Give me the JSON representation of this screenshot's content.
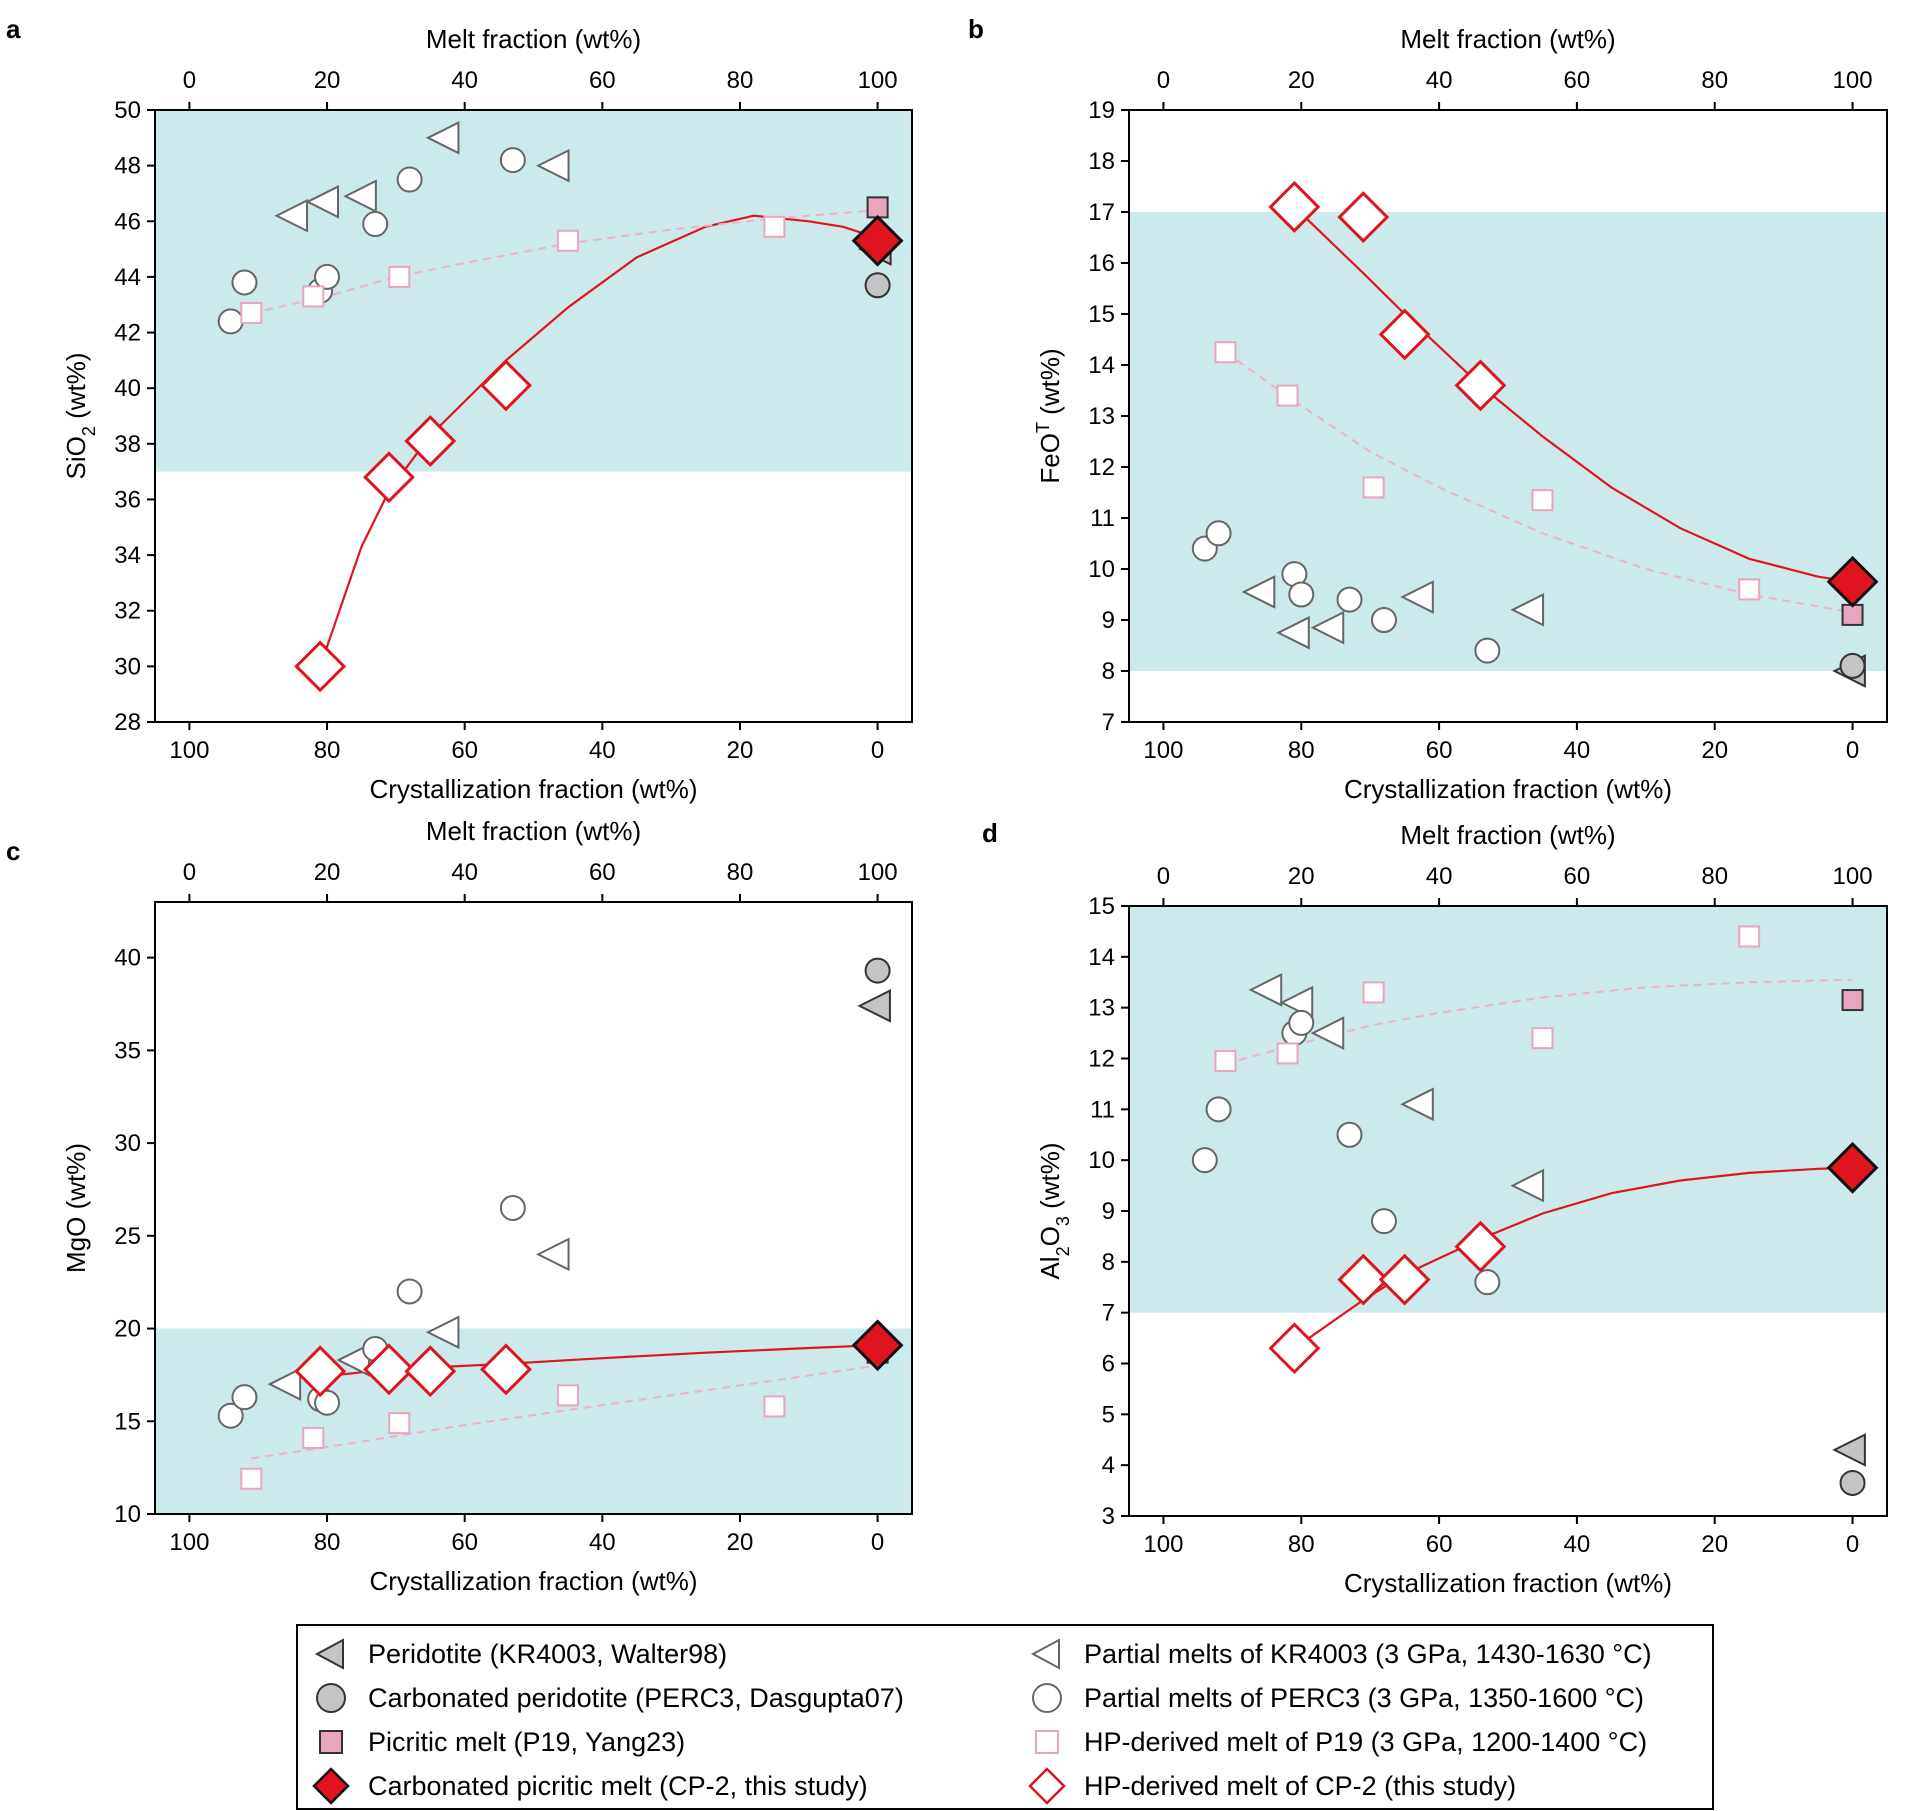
{
  "panels": {
    "a": "a",
    "b": "b",
    "c": "c",
    "d": "d"
  },
  "legend": {
    "items": [
      {
        "label": "Peridotite (KR4003, Walter98)",
        "marker": "triangle-left-filled"
      },
      {
        "label": "Carbonated peridotite (PERC3, Dasgupta07)",
        "marker": "circle-filled"
      },
      {
        "label": "Picritic melt (P19, Yang23)",
        "marker": "square-filled"
      },
      {
        "label": "Carbonated picritic melt (CP-2, this study)",
        "marker": "diamond-filled"
      },
      {
        "label": "Partial melts of KR4003 (3 GPa, 1430-1630 °C)",
        "marker": "triangle-left-open"
      },
      {
        "label": "Partial melts of PERC3 (3 GPa, 1350-1600 °C)",
        "marker": "circle-open"
      },
      {
        "label": "HP-derived melt of P19 (3 GPa, 1200-1400 °C)",
        "marker": "square-open"
      },
      {
        "label": "HP-derived melt of CP-2 (this study)",
        "marker": "diamond-open"
      }
    ]
  },
  "colors": {
    "band": "#cce9ec",
    "gray_fill": "#c4c4c4",
    "pink_fill": "#e8a5bd",
    "red": "#e0141e",
    "pink_line": "#eeb0c7",
    "pink_open": "#e8a5bd"
  },
  "chart_data": [
    {
      "id": "a",
      "type": "scatter",
      "top_xlabel": "Melt fraction (wt%)",
      "xlabel": "Crystallization fraction (wt%)",
      "ylabel": "SiO2 (wt%)",
      "ylabel_main": "SiO",
      "ylabel_sub": "2",
      "ylabel_sup": "",
      "ylabel_tail": " (wt%)",
      "xlim_crystallization": [
        105,
        -5
      ],
      "top_xlim_melt": [
        -5,
        105
      ],
      "ylim": [
        28,
        50
      ],
      "xticks": [
        100,
        80,
        60,
        40,
        20,
        0
      ],
      "top_xticks": [
        0,
        20,
        40,
        60,
        80,
        100
      ],
      "yticks": [
        28,
        30,
        32,
        34,
        36,
        38,
        40,
        42,
        44,
        46,
        48,
        50
      ],
      "band": [
        37,
        50
      ],
      "series": [
        {
          "name": "Peridotite (KR4003, Walter98)",
          "marker": "triangle-left-filled",
          "x": [
            0.2
          ],
          "y": [
            45
          ]
        },
        {
          "name": "Carbonated peridotite (PERC3, Dasgupta07)",
          "marker": "circle-filled",
          "x": [
            0
          ],
          "y": [
            43.7
          ]
        },
        {
          "name": "Picritic melt (P19, Yang23)",
          "marker": "square-filled",
          "x": [
            0
          ],
          "y": [
            46.5
          ]
        },
        {
          "name": "Carbonated picritic melt (CP-2, this study)",
          "marker": "diamond-filled",
          "x": [
            0
          ],
          "y": [
            45.3
          ]
        },
        {
          "name": "Partial melts of KR4003 (3 GPa, 1430-1630 °C)",
          "marker": "triangle-left-open",
          "x": [
            85,
            80.5,
            75,
            63,
            47
          ],
          "y": [
            46.2,
            46.7,
            46.9,
            49,
            48
          ]
        },
        {
          "name": "Partial melts of PERC3 (3 GPa, 1350-1600 °C)",
          "marker": "circle-open",
          "x": [
            94,
            92,
            81,
            80,
            73,
            68,
            53
          ],
          "y": [
            42.4,
            43.8,
            43.5,
            44,
            45.9,
            47.5,
            48.2
          ]
        },
        {
          "name": "HP-derived melt of P19 (3 GPa, 1200-1400 °C)",
          "marker": "square-open",
          "x": [
            91,
            82,
            69.5,
            45,
            15
          ],
          "y": [
            42.7,
            43.3,
            44,
            45.3,
            45.8
          ]
        },
        {
          "name": "HP-derived melt of CP-2 (this study)",
          "marker": "diamond-open",
          "x": [
            81,
            71,
            65,
            54
          ],
          "y": [
            30,
            36.8,
            38.1,
            40.1
          ]
        }
      ],
      "fits": [
        {
          "style": "solid-red",
          "x": [
            81,
            75,
            71,
            65,
            54,
            45,
            35,
            25,
            18,
            10,
            5,
            0
          ],
          "y": [
            30,
            34.3,
            36.3,
            38.3,
            41.0,
            42.9,
            44.7,
            45.8,
            46.2,
            46.0,
            45.8,
            45.4
          ]
        },
        {
          "style": "dashed-pink",
          "x": [
            91,
            80,
            70,
            60,
            45,
            30,
            15,
            0
          ],
          "y": [
            42.7,
            43.3,
            44.0,
            44.5,
            45.2,
            45.7,
            46.1,
            46.4
          ]
        }
      ]
    },
    {
      "id": "b",
      "type": "scatter",
      "top_xlabel": "Melt fraction (wt%)",
      "xlabel": "Crystallization fraction (wt%)",
      "ylabel": "FeOT (wt%)",
      "ylabel_main": "FeO",
      "ylabel_sub": "",
      "ylabel_sup": "T",
      "ylabel_tail": " (wt%)",
      "xlim_crystallization": [
        105,
        -5
      ],
      "top_xlim_melt": [
        -5,
        105
      ],
      "ylim": [
        7,
        19
      ],
      "xticks": [
        100,
        80,
        60,
        40,
        20,
        0
      ],
      "top_xticks": [
        0,
        20,
        40,
        60,
        80,
        100
      ],
      "yticks": [
        7,
        8,
        9,
        10,
        11,
        12,
        13,
        14,
        15,
        16,
        17,
        18,
        19
      ],
      "band": [
        8,
        17
      ],
      "series": [
        {
          "name": "Peridotite (KR4003, Walter98)",
          "marker": "triangle-left-filled",
          "x": [
            0.3
          ],
          "y": [
            8.0
          ]
        },
        {
          "name": "Carbonated peridotite (PERC3, Dasgupta07)",
          "marker": "circle-filled",
          "x": [
            0
          ],
          "y": [
            8.1
          ]
        },
        {
          "name": "Picritic melt (P19, Yang23)",
          "marker": "square-filled",
          "x": [
            0
          ],
          "y": [
            9.1
          ]
        },
        {
          "name": "Carbonated picritic melt (CP-2, this study)",
          "marker": "diamond-filled",
          "x": [
            0
          ],
          "y": [
            9.75
          ]
        },
        {
          "name": "Partial melts of KR4003 (3 GPa, 1430-1630 °C)",
          "marker": "triangle-left-open",
          "x": [
            86,
            81,
            76,
            63,
            47
          ],
          "y": [
            9.55,
            8.75,
            8.85,
            9.45,
            9.2
          ]
        },
        {
          "name": "Partial melts of PERC3 (3 GPa, 1350-1600 °C)",
          "marker": "circle-open",
          "x": [
            94,
            92,
            81,
            80,
            73,
            68,
            53
          ],
          "y": [
            10.4,
            10.7,
            9.9,
            9.5,
            9.4,
            9.0,
            8.4
          ]
        },
        {
          "name": "HP-derived melt of P19 (3 GPa, 1200-1400 °C)",
          "marker": "square-open",
          "x": [
            91,
            82,
            69.5,
            45,
            15
          ],
          "y": [
            14.25,
            13.4,
            11.6,
            11.35,
            9.6
          ]
        },
        {
          "name": "HP-derived melt of CP-2 (this study)",
          "marker": "diamond-open",
          "x": [
            81,
            71,
            65,
            54
          ],
          "y": [
            17.1,
            16.9,
            14.6,
            13.6
          ]
        }
      ],
      "fits": [
        {
          "style": "solid-red",
          "x": [
            81,
            71,
            65,
            54,
            45,
            35,
            25,
            15,
            5,
            0
          ],
          "y": [
            17.1,
            15.8,
            15.0,
            13.6,
            12.6,
            11.6,
            10.8,
            10.2,
            9.85,
            9.75
          ]
        },
        {
          "style": "dashed-pink",
          "x": [
            91,
            80,
            70,
            60,
            45,
            30,
            15,
            0
          ],
          "y": [
            14.25,
            13.2,
            12.3,
            11.6,
            10.7,
            10.0,
            9.5,
            9.15
          ]
        }
      ]
    },
    {
      "id": "c",
      "type": "scatter",
      "top_xlabel": "Melt fraction (wt%)",
      "xlabel": "Crystallization fraction (wt%)",
      "ylabel": "MgO (wt%)",
      "ylabel_main": "MgO",
      "ylabel_sub": "",
      "ylabel_sup": "",
      "ylabel_tail": " (wt%)",
      "xlim_crystallization": [
        105,
        -5
      ],
      "top_xlim_melt": [
        -5,
        105
      ],
      "ylim": [
        10,
        43
      ],
      "xticks": [
        100,
        80,
        60,
        40,
        20,
        0
      ],
      "top_xticks": [
        0,
        20,
        40,
        60,
        80,
        100
      ],
      "yticks": [
        10,
        15,
        20,
        25,
        30,
        35,
        40
      ],
      "band": [
        10,
        20
      ],
      "series": [
        {
          "name": "Peridotite (KR4003, Walter98)",
          "marker": "triangle-left-filled",
          "x": [
            0.3
          ],
          "y": [
            37.4
          ]
        },
        {
          "name": "Carbonated peridotite (PERC3, Dasgupta07)",
          "marker": "circle-filled",
          "x": [
            0
          ],
          "y": [
            39.3
          ]
        },
        {
          "name": "Picritic melt (P19, Yang23)",
          "marker": "square-filled",
          "x": [
            0
          ],
          "y": [
            18.7
          ]
        },
        {
          "name": "Carbonated picritic melt (CP-2, this study)",
          "marker": "diamond-filled",
          "x": [
            0
          ],
          "y": [
            19.1
          ]
        },
        {
          "name": "Partial melts of KR4003 (3 GPa, 1430-1630 °C)",
          "marker": "triangle-left-open",
          "x": [
            86,
            76,
            63,
            47
          ],
          "y": [
            17.0,
            18.3,
            19.8,
            24.0
          ]
        },
        {
          "name": "Partial melts of PERC3 (3 GPa, 1350-1600 °C)",
          "marker": "circle-open",
          "x": [
            94,
            92,
            81,
            80,
            73,
            68,
            53
          ],
          "y": [
            15.3,
            16.3,
            16.2,
            16.0,
            18.9,
            22.0,
            26.5
          ]
        },
        {
          "name": "HP-derived melt of P19 (3 GPa, 1200-1400 °C)",
          "marker": "square-open",
          "x": [
            91,
            82,
            69.5,
            45,
            15
          ],
          "y": [
            11.9,
            14.1,
            14.9,
            16.4,
            15.8
          ]
        },
        {
          "name": "HP-derived melt of CP-2 (this study)",
          "marker": "diamond-open",
          "x": [
            81,
            71,
            65,
            54
          ],
          "y": [
            17.7,
            17.8,
            17.7,
            17.8
          ]
        }
      ],
      "fits": [
        {
          "style": "solid-red",
          "x": [
            81,
            71,
            65,
            54,
            40,
            25,
            10,
            0
          ],
          "y": [
            17.4,
            17.8,
            17.9,
            18.1,
            18.4,
            18.7,
            18.95,
            19.1
          ]
        },
        {
          "style": "dashed-pink",
          "x": [
            91,
            75,
            60,
            45,
            30,
            15,
            0
          ],
          "y": [
            13.0,
            13.9,
            14.8,
            15.6,
            16.4,
            17.2,
            18.0
          ]
        }
      ]
    },
    {
      "id": "d",
      "type": "scatter",
      "top_xlabel": "Melt fraction (wt%)",
      "xlabel": "Crystallization fraction (wt%)",
      "ylabel": "Al2O3 (wt%)",
      "ylabel_main": "Al",
      "ylabel_sub": "2",
      "ylabel_sup": "",
      "ylabel_tail": "O",
      "ylabel_sub2": "3",
      "ylabel_tail2": " (wt%)",
      "xlim_crystallization": [
        105,
        -5
      ],
      "top_xlim_melt": [
        -5,
        105
      ],
      "ylim": [
        3,
        15
      ],
      "xticks": [
        100,
        80,
        60,
        40,
        20,
        0
      ],
      "top_xticks": [
        0,
        20,
        40,
        60,
        80,
        100
      ],
      "yticks": [
        3,
        4,
        5,
        6,
        7,
        8,
        9,
        10,
        11,
        12,
        13,
        14,
        15
      ],
      "band": [
        7,
        15
      ],
      "series": [
        {
          "name": "Peridotite (KR4003, Walter98)",
          "marker": "triangle-left-filled",
          "x": [
            0.3
          ],
          "y": [
            4.3
          ]
        },
        {
          "name": "Carbonated peridotite (PERC3, Dasgupta07)",
          "marker": "circle-filled",
          "x": [
            0
          ],
          "y": [
            3.65
          ]
        },
        {
          "name": "Picritic melt (P19, Yang23)",
          "marker": "square-filled",
          "x": [
            0
          ],
          "y": [
            13.15
          ]
        },
        {
          "name": "Carbonated picritic melt (CP-2, this study)",
          "marker": "diamond-filled",
          "x": [
            0
          ],
          "y": [
            9.85
          ]
        },
        {
          "name": "Partial melts of KR4003 (3 GPa, 1430-1630 °C)",
          "marker": "triangle-left-open",
          "x": [
            85,
            80.5,
            76,
            63,
            47
          ],
          "y": [
            13.35,
            13.1,
            12.5,
            11.1,
            9.5
          ]
        },
        {
          "name": "Partial melts of PERC3 (3 GPa, 1350-1600 °C)",
          "marker": "circle-open",
          "x": [
            94,
            92,
            81,
            80,
            73,
            68,
            53
          ],
          "y": [
            10.0,
            11.0,
            12.5,
            12.7,
            10.5,
            8.8,
            7.6
          ]
        },
        {
          "name": "HP-derived melt of P19 (3 GPa, 1200-1400 °C)",
          "marker": "square-open",
          "x": [
            91,
            82,
            69.5,
            45,
            15
          ],
          "y": [
            11.95,
            12.1,
            13.3,
            12.4,
            14.4
          ]
        },
        {
          "name": "HP-derived melt of CP-2 (this study)",
          "marker": "diamond-open",
          "x": [
            81,
            71,
            65,
            54
          ],
          "y": [
            6.3,
            7.65,
            7.65,
            8.3
          ]
        }
      ],
      "fits": [
        {
          "style": "solid-red",
          "x": [
            81,
            71,
            65,
            54,
            45,
            35,
            25,
            15,
            5,
            0
          ],
          "y": [
            6.3,
            7.25,
            7.75,
            8.45,
            8.95,
            9.35,
            9.6,
            9.75,
            9.83,
            9.85
          ]
        },
        {
          "style": "dashed-pink",
          "x": [
            91,
            80,
            70,
            60,
            45,
            30,
            15,
            0
          ],
          "y": [
            11.9,
            12.3,
            12.65,
            12.9,
            13.2,
            13.4,
            13.5,
            13.55
          ]
        }
      ]
    }
  ]
}
